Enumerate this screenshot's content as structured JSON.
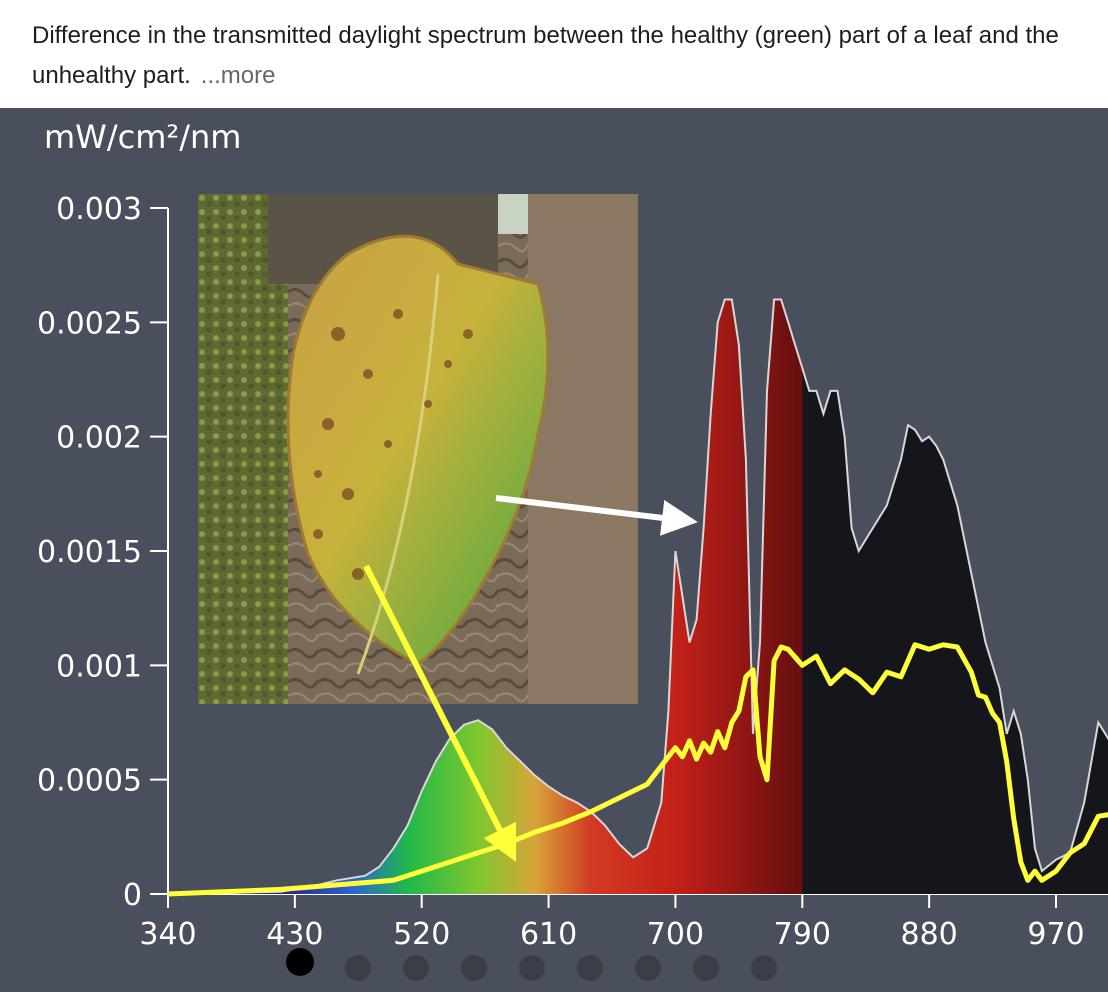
{
  "caption": {
    "text": "Difference in the transmitted daylight spectrum between the healthy (green) part of a leaf and the unhealthy part.",
    "more_label": "...more"
  },
  "carousel": {
    "count": 9,
    "active_index": 0
  },
  "chart_data": {
    "type": "area",
    "title": "",
    "unit_label": "mW/cm²/nm",
    "xlabel": "",
    "ylabel": "mW/cm²/nm",
    "xlim": [
      340,
      1010
    ],
    "ylim": [
      0,
      0.003
    ],
    "x_ticks": [
      340,
      430,
      520,
      610,
      700,
      790,
      880,
      970
    ],
    "y_ticks": [
      0,
      0.0005,
      0.001,
      0.0015,
      0.002,
      0.0025,
      0.003
    ],
    "y_tick_labels": [
      "0",
      "0.0005",
      "0.001",
      "0.0015",
      "0.002",
      "0.0025",
      "0.003"
    ],
    "grid": false,
    "colors": {
      "background": "#4a4f5e",
      "healthy_fill_dark": "#15161c",
      "healthy_outline": "#d8d8d8",
      "unhealthy_line": "#ffff3a",
      "arrow_white": "#ffffff",
      "arrow_yellow": "#ffff3a"
    },
    "series": [
      {
        "x": [
          340,
          420,
          440,
          460,
          480,
          490,
          500,
          510,
          520,
          530,
          540,
          550,
          560,
          570,
          580,
          590,
          600,
          610,
          620,
          630,
          640,
          650,
          660,
          670,
          680,
          690,
          695,
          700,
          705,
          710,
          715,
          720,
          725,
          730,
          735,
          740,
          745,
          750,
          755,
          760,
          765,
          770,
          775,
          780,
          785,
          790,
          795,
          800,
          805,
          810,
          815,
          820,
          825,
          830,
          840,
          850,
          860,
          865,
          870,
          875,
          880,
          885,
          890,
          900,
          910,
          920,
          930,
          935,
          940,
          945,
          950,
          955,
          960,
          970,
          980,
          990,
          1000,
          1010
        ],
        "y": [
          0,
          1e-05,
          3e-05,
          6e-05,
          8e-05,
          0.00012,
          0.0002,
          0.0003,
          0.00045,
          0.00058,
          0.00068,
          0.00074,
          0.00076,
          0.00072,
          0.00064,
          0.00058,
          0.00052,
          0.00047,
          0.00043,
          0.0004,
          0.00036,
          0.0003,
          0.00022,
          0.00016,
          0.0002,
          0.0004,
          0.0008,
          0.0015,
          0.0013,
          0.0011,
          0.0012,
          0.0016,
          0.0021,
          0.0025,
          0.0026,
          0.0026,
          0.0024,
          0.0019,
          0.0007,
          0.0011,
          0.0022,
          0.0026,
          0.0026,
          0.0025,
          0.0024,
          0.0023,
          0.0022,
          0.0022,
          0.0021,
          0.0022,
          0.0022,
          0.002,
          0.0016,
          0.0015,
          0.0016,
          0.0017,
          0.0019,
          0.00205,
          0.00203,
          0.00198,
          0.002,
          0.00196,
          0.0019,
          0.0017,
          0.0014,
          0.0011,
          0.0009,
          0.0007,
          0.0008,
          0.0007,
          0.0005,
          0.0002,
          0.0001,
          0.00015,
          0.00018,
          0.0004,
          0.00075,
          0.00065
        ]
      },
      {
        "x": [
          340,
          420,
          460,
          500,
          520,
          540,
          560,
          580,
          600,
          620,
          640,
          660,
          680,
          690,
          700,
          705,
          710,
          715,
          720,
          725,
          730,
          735,
          740,
          745,
          750,
          755,
          760,
          765,
          770,
          775,
          780,
          790,
          800,
          810,
          820,
          830,
          840,
          850,
          860,
          870,
          880,
          890,
          900,
          910,
          915,
          920,
          925,
          930,
          935,
          940,
          945,
          950,
          955,
          960,
          970,
          980,
          990,
          1000,
          1010
        ],
        "y": [
          0,
          2e-05,
          4e-05,
          6e-05,
          0.0001,
          0.00014,
          0.00018,
          0.00022,
          0.00027,
          0.00031,
          0.00036,
          0.00042,
          0.00048,
          0.00056,
          0.00064,
          0.0006,
          0.00067,
          0.00059,
          0.00066,
          0.00062,
          0.00071,
          0.00064,
          0.00075,
          0.0008,
          0.00095,
          0.00098,
          0.0006,
          0.0005,
          0.00102,
          0.00108,
          0.00107,
          0.001,
          0.00104,
          0.00092,
          0.00098,
          0.00094,
          0.00088,
          0.00097,
          0.00095,
          0.00109,
          0.00107,
          0.00109,
          0.00108,
          0.00097,
          0.00087,
          0.00086,
          0.00079,
          0.00075,
          0.00058,
          0.00033,
          0.00014,
          6e-05,
          0.0001,
          6e-05,
          0.0001,
          0.00018,
          0.00022,
          0.00034,
          0.00035
        ]
      }
    ],
    "band_stops": [
      {
        "x": 420,
        "color": "#2a1f8a"
      },
      {
        "x": 470,
        "color": "#2a63d8"
      },
      {
        "x": 510,
        "color": "#1fb84a"
      },
      {
        "x": 560,
        "color": "#7fc72e"
      },
      {
        "x": 600,
        "color": "#d7a53a"
      },
      {
        "x": 640,
        "color": "#d23a23"
      },
      {
        "x": 700,
        "color": "#c32118"
      },
      {
        "x": 785,
        "color": "#6a0f10"
      }
    ],
    "band_end": 790
  }
}
